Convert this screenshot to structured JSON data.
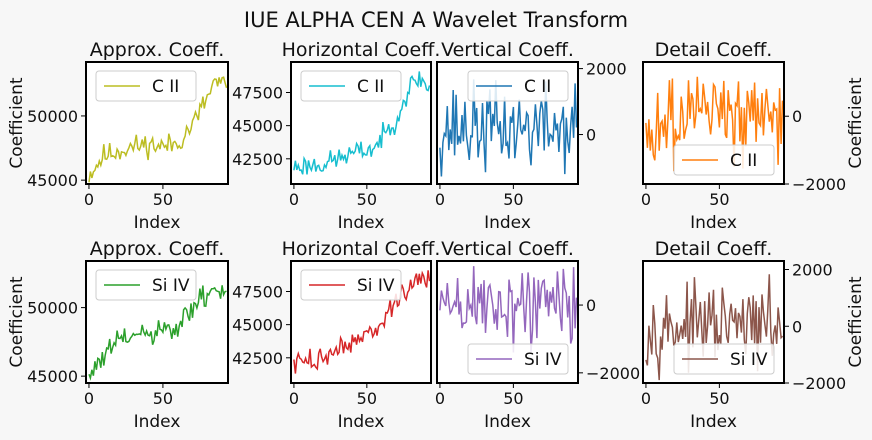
{
  "figure_title": "IUE ALPHA CEN A Wavelet Transform",
  "chart_data": [
    {
      "type": "line",
      "title": "Approx. Coeff.",
      "xlabel": "Index",
      "ylabel": "Coefficient",
      "legend": "upper-left",
      "xlim": [
        -2,
        94
      ],
      "ylim": [
        44700,
        54200
      ],
      "xticks": [
        0,
        50
      ],
      "yticks": [
        45000,
        50000
      ],
      "ytick_side": "left",
      "series": [
        {
          "name": "C II",
          "color": "#bcbd22",
          "seed": 11,
          "base": [
            [
              0,
              45400
            ],
            [
              10,
              46900
            ],
            [
              20,
              47300
            ],
            [
              30,
              47600
            ],
            [
              40,
              47800
            ],
            [
              50,
              47600
            ],
            [
              60,
              47900
            ],
            [
              70,
              49300
            ],
            [
              80,
              51400
            ],
            [
              85,
              52700
            ],
            [
              94,
              52200
            ]
          ],
          "noise": 900
        }
      ]
    },
    {
      "type": "line",
      "title": "Horizontal Coeff.",
      "xlabel": "Index",
      "ylabel": "",
      "legend": "upper-left",
      "xlim": [
        -2,
        94
      ],
      "ylim": [
        40600,
        49800
      ],
      "xticks": [
        0,
        50
      ],
      "yticks": [
        42500,
        45000,
        47500
      ],
      "ytick_side": "left",
      "series": [
        {
          "name": "C II",
          "color": "#17becf",
          "seed": 23,
          "base": [
            [
              0,
              41900
            ],
            [
              20,
              42100
            ],
            [
              40,
              42900
            ],
            [
              55,
              43300
            ],
            [
              62,
              44300
            ],
            [
              70,
              45500
            ],
            [
              80,
              48000
            ],
            [
              86,
              48600
            ],
            [
              94,
              47700
            ]
          ],
          "noise": 800
        }
      ]
    },
    {
      "type": "line",
      "title": "Vertical Coeff.",
      "xlabel": "Index",
      "ylabel": "",
      "legend": "upper-right",
      "xlim": [
        -2,
        94
      ],
      "ylim": [
        -1500,
        2200
      ],
      "xticks": [
        0,
        50
      ],
      "yticks": [
        0,
        2000
      ],
      "ytick_side": "right",
      "series": [
        {
          "name": "C II",
          "color": "#1f77b4",
          "seed": 37,
          "base": [
            [
              0,
              200
            ],
            [
              94,
              200
            ]
          ],
          "noise": 1300
        }
      ]
    },
    {
      "type": "line",
      "title": "Detail Coeff.",
      "xlabel": "Index",
      "ylabel": "Coefficient",
      "legend": "lower-right",
      "xlim": [
        -2,
        94
      ],
      "ylim": [
        -2000,
        1600
      ],
      "xticks": [
        0,
        50
      ],
      "yticks": [
        -2000,
        0
      ],
      "ytick_side": "right",
      "series": [
        {
          "name": "C II",
          "color": "#ff7f0e",
          "seed": 49,
          "base": [
            [
              0,
              0
            ],
            [
              94,
              0
            ]
          ],
          "noise": 1300
        }
      ]
    },
    {
      "type": "line",
      "title": "Approx. Coeff.",
      "xlabel": "Index",
      "ylabel": "Coefficient",
      "legend": "upper-left",
      "xlim": [
        -2,
        94
      ],
      "ylim": [
        44500,
        53400
      ],
      "xticks": [
        0,
        50
      ],
      "yticks": [
        45000,
        50000
      ],
      "ytick_side": "left",
      "series": [
        {
          "name": "Si IV",
          "color": "#2ca02c",
          "seed": 61,
          "base": [
            [
              0,
              45000
            ],
            [
              10,
              46400
            ],
            [
              20,
              47600
            ],
            [
              30,
              47900
            ],
            [
              40,
              48000
            ],
            [
              50,
              48200
            ],
            [
              60,
              48400
            ],
            [
              70,
              50000
            ],
            [
              80,
              51000
            ],
            [
              94,
              51500
            ]
          ],
          "noise": 900
        }
      ]
    },
    {
      "type": "line",
      "title": "Horizontal Coeff.",
      "xlabel": "Index",
      "ylabel": "",
      "legend": "upper-left",
      "xlim": [
        -2,
        94
      ],
      "ylim": [
        40600,
        49800
      ],
      "xticks": [
        0,
        50
      ],
      "yticks": [
        42500,
        45000,
        47500
      ],
      "ytick_side": "left",
      "series": [
        {
          "name": "Si IV",
          "color": "#d62728",
          "seed": 73,
          "base": [
            [
              0,
              42000
            ],
            [
              20,
              42500
            ],
            [
              40,
              43800
            ],
            [
              55,
              44600
            ],
            [
              62,
              45300
            ],
            [
              70,
              46500
            ],
            [
              80,
              48000
            ],
            [
              86,
              48500
            ],
            [
              94,
              48200
            ]
          ],
          "noise": 800
        }
      ]
    },
    {
      "type": "line",
      "title": "Vertical Coeff.",
      "xlabel": "Index",
      "ylabel": "",
      "legend": "lower-right",
      "xlim": [
        -2,
        94
      ],
      "ylim": [
        -2300,
        1300
      ],
      "xticks": [
        0,
        50
      ],
      "yticks": [
        -2000,
        0
      ],
      "ytick_side": "right",
      "series": [
        {
          "name": "Si IV",
          "color": "#9467bd",
          "seed": 89,
          "base": [
            [
              0,
              0
            ],
            [
              94,
              0
            ]
          ],
          "noise": 1300
        }
      ]
    },
    {
      "type": "line",
      "title": "Detail Coeff.",
      "xlabel": "Index",
      "ylabel": "Coefficient",
      "legend": "lower-right",
      "xlim": [
        -2,
        94
      ],
      "ylim": [
        -2000,
        2300
      ],
      "xticks": [
        0,
        50
      ],
      "yticks": [
        -2000,
        0,
        2000
      ],
      "ytick_side": "right",
      "series": [
        {
          "name": "Si IV",
          "color": "#8c564b",
          "seed": 97,
          "base": [
            [
              0,
              0
            ],
            [
              94,
              0
            ]
          ],
          "noise": 1300
        }
      ]
    }
  ]
}
